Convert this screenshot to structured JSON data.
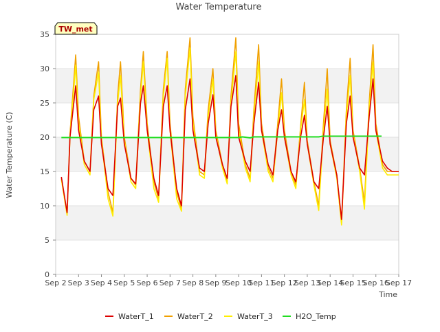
{
  "chart_data": {
    "type": "line",
    "title": "Water Temperature",
    "xlabel": "Time",
    "ylabel": "Water Temperature (C)",
    "xlim": [
      "2021-09-02",
      "2021-09-17"
    ],
    "ylim": [
      0,
      35
    ],
    "yticks": [
      0,
      5,
      10,
      15,
      20,
      25,
      30,
      35
    ],
    "xtick_labels": [
      "Sep 2",
      "Sep 3",
      "Sep 4",
      "Sep 5",
      "Sep 6",
      "Sep 7",
      "Sep 8",
      "Sep 9",
      "Sep 10",
      "Sep 11",
      "Sep 12",
      "Sep 13",
      "Sep 14",
      "Sep 15",
      "Sep 16",
      "Sep 17"
    ],
    "grid": "horizontal bands",
    "legend_position": "bottom",
    "annotation": "TW_met",
    "series": [
      {
        "name": "WaterT_1",
        "color": "#dd0000",
        "x": [
          "2021-09-02 06:00",
          "2021-09-02 12:00",
          "2021-09-02 15:00",
          "2021-09-02 21:00",
          "2021-09-03 00:00",
          "2021-09-03 06:00",
          "2021-09-03 12:00",
          "2021-09-03 16:00",
          "2021-09-03 21:00",
          "2021-09-04 00:00",
          "2021-09-04 07:00",
          "2021-09-04 12:00",
          "2021-09-04 17:00",
          "2021-09-04 20:00",
          "2021-09-05 00:00",
          "2021-09-05 07:00",
          "2021-09-05 12:00",
          "2021-09-05 17:00",
          "2021-09-05 20:00",
          "2021-09-06 00:00",
          "2021-09-06 07:00",
          "2021-09-06 12:00",
          "2021-09-06 17:00",
          "2021-09-06 21:00",
          "2021-09-07 00:00",
          "2021-09-07 07:00",
          "2021-09-07 12:00",
          "2021-09-07 16:00",
          "2021-09-07 21:00",
          "2021-09-08 00:00",
          "2021-09-08 07:00",
          "2021-09-08 12:00",
          "2021-09-08 16:00",
          "2021-09-08 21:00",
          "2021-09-09 00:00",
          "2021-09-09 07:00",
          "2021-09-09 12:00",
          "2021-09-09 16:00",
          "2021-09-09 21:00",
          "2021-09-10 00:00",
          "2021-09-10 07:00",
          "2021-09-10 12:00",
          "2021-09-10 16:00",
          "2021-09-10 21:00",
          "2021-09-11 00:00",
          "2021-09-11 07:00",
          "2021-09-11 12:00",
          "2021-09-11 17:00",
          "2021-09-11 21:00",
          "2021-09-12 00:00",
          "2021-09-12 07:00",
          "2021-09-12 12:00",
          "2021-09-12 17:00",
          "2021-09-12 21:00",
          "2021-09-13 00:00",
          "2021-09-13 07:00",
          "2021-09-13 12:00",
          "2021-09-13 17:00",
          "2021-09-13 21:00",
          "2021-09-14 00:00",
          "2021-09-14 07:00",
          "2021-09-14 12:00",
          "2021-09-14 17:00",
          "2021-09-14 21:00",
          "2021-09-15 00:00",
          "2021-09-15 07:00",
          "2021-09-15 12:00",
          "2021-09-15 17:00",
          "2021-09-15 21:00",
          "2021-09-16 00:00",
          "2021-09-16 07:00",
          "2021-09-16 12:00",
          "2021-09-16 17:00",
          "2021-09-16 21:00",
          "2021-09-17 00:00"
        ],
        "y": [
          14.2,
          9.0,
          20.0,
          27.5,
          21.0,
          16.5,
          15.0,
          24.0,
          26.0,
          19.0,
          12.5,
          11.5,
          24.5,
          25.7,
          19.0,
          14.0,
          13.2,
          25.0,
          27.5,
          21.0,
          14.0,
          11.5,
          24.5,
          27.5,
          21.0,
          12.5,
          10.0,
          24.0,
          28.5,
          21.0,
          15.5,
          15.0,
          22.0,
          26.2,
          20.0,
          16.0,
          14.0,
          24.5,
          29.0,
          20.0,
          16.5,
          15.0,
          22.0,
          28.0,
          21.0,
          16.0,
          14.5,
          21.0,
          24.0,
          20.0,
          15.0,
          13.5,
          20.0,
          23.2,
          19.0,
          13.5,
          12.5,
          20.0,
          24.5,
          19.0,
          14.5,
          8.0,
          22.0,
          26.0,
          20.0,
          15.5,
          14.5,
          23.0,
          28.5,
          21.0,
          16.5,
          15.5,
          15.0,
          15.0,
          15.0
        ]
      },
      {
        "name": "WaterT_2",
        "color": "#f0a000",
        "x": [
          "2021-09-02 06:00",
          "2021-09-02 12:00",
          "2021-09-02 15:00",
          "2021-09-02 21:00",
          "2021-09-03 00:00",
          "2021-09-03 06:00",
          "2021-09-03 12:00",
          "2021-09-03 16:00",
          "2021-09-03 21:00",
          "2021-09-04 00:00",
          "2021-09-04 07:00",
          "2021-09-04 12:00",
          "2021-09-04 17:00",
          "2021-09-04 20:00",
          "2021-09-05 00:00",
          "2021-09-05 07:00",
          "2021-09-05 12:00",
          "2021-09-05 17:00",
          "2021-09-05 20:00",
          "2021-09-06 00:00",
          "2021-09-06 07:00",
          "2021-09-06 12:00",
          "2021-09-06 17:00",
          "2021-09-06 21:00",
          "2021-09-07 00:00",
          "2021-09-07 07:00",
          "2021-09-07 12:00",
          "2021-09-07 16:00",
          "2021-09-07 21:00",
          "2021-09-08 00:00",
          "2021-09-08 07:00",
          "2021-09-08 12:00",
          "2021-09-08 16:00",
          "2021-09-08 21:00",
          "2021-09-09 00:00",
          "2021-09-09 07:00",
          "2021-09-09 12:00",
          "2021-09-09 16:00",
          "2021-09-09 21:00",
          "2021-09-10 00:00",
          "2021-09-10 07:00",
          "2021-09-10 12:00",
          "2021-09-10 16:00",
          "2021-09-10 21:00",
          "2021-09-11 00:00",
          "2021-09-11 07:00",
          "2021-09-11 12:00",
          "2021-09-11 17:00",
          "2021-09-11 21:00",
          "2021-09-12 00:00",
          "2021-09-12 07:00",
          "2021-09-12 12:00",
          "2021-09-12 17:00",
          "2021-09-12 21:00",
          "2021-09-13 00:00",
          "2021-09-13 07:00",
          "2021-09-13 12:00",
          "2021-09-13 17:00",
          "2021-09-13 21:00",
          "2021-09-14 00:00",
          "2021-09-14 07:00",
          "2021-09-14 12:00",
          "2021-09-14 17:00",
          "2021-09-14 21:00",
          "2021-09-15 00:00",
          "2021-09-15 07:00",
          "2021-09-15 12:00",
          "2021-09-15 17:00",
          "2021-09-15 21:00",
          "2021-09-16 00:00",
          "2021-09-16 07:00",
          "2021-09-16 12:00",
          "2021-09-16 17:00",
          "2021-09-16 21:00",
          "2021-09-17 00:00"
        ],
        "y": [
          14.0,
          8.8,
          20.5,
          32.0,
          23.0,
          16.5,
          15.0,
          26.0,
          31.0,
          20.0,
          12.0,
          9.0,
          26.0,
          31.0,
          20.0,
          14.0,
          13.0,
          27.0,
          32.5,
          22.0,
          13.5,
          11.0,
          27.0,
          32.5,
          22.0,
          12.0,
          9.5,
          27.0,
          34.5,
          23.0,
          15.0,
          14.5,
          24.0,
          30.0,
          21.0,
          16.0,
          13.5,
          26.0,
          34.5,
          22.0,
          16.0,
          14.0,
          24.0,
          33.5,
          22.0,
          15.5,
          14.0,
          22.0,
          28.5,
          21.0,
          15.0,
          13.0,
          21.5,
          28.0,
          19.5,
          13.5,
          10.0,
          22.0,
          30.0,
          19.5,
          14.5,
          7.5,
          24.0,
          31.5,
          21.0,
          15.5,
          10.5,
          25.0,
          33.5,
          22.0,
          16.0,
          15.0,
          15.0,
          15.0,
          15.0
        ]
      },
      {
        "name": "WaterT_3",
        "color": "#ffee00",
        "x": [
          "2021-09-02 06:00",
          "2021-09-02 12:00",
          "2021-09-02 15:00",
          "2021-09-02 21:00",
          "2021-09-03 00:00",
          "2021-09-03 06:00",
          "2021-09-03 12:00",
          "2021-09-03 16:00",
          "2021-09-03 21:00",
          "2021-09-04 00:00",
          "2021-09-04 07:00",
          "2021-09-04 12:00",
          "2021-09-04 17:00",
          "2021-09-04 20:00",
          "2021-09-05 00:00",
          "2021-09-05 07:00",
          "2021-09-05 12:00",
          "2021-09-05 17:00",
          "2021-09-05 20:00",
          "2021-09-06 00:00",
          "2021-09-06 07:00",
          "2021-09-06 12:00",
          "2021-09-06 17:00",
          "2021-09-06 21:00",
          "2021-09-07 00:00",
          "2021-09-07 07:00",
          "2021-09-07 12:00",
          "2021-09-07 16:00",
          "2021-09-07 21:00",
          "2021-09-08 00:00",
          "2021-09-08 07:00",
          "2021-09-08 12:00",
          "2021-09-08 16:00",
          "2021-09-08 21:00",
          "2021-09-09 00:00",
          "2021-09-09 07:00",
          "2021-09-09 12:00",
          "2021-09-09 16:00",
          "2021-09-09 21:00",
          "2021-09-10 00:00",
          "2021-09-10 07:00",
          "2021-09-10 12:00",
          "2021-09-10 16:00",
          "2021-09-10 21:00",
          "2021-09-11 00:00",
          "2021-09-11 07:00",
          "2021-09-11 12:00",
          "2021-09-11 17:00",
          "2021-09-11 21:00",
          "2021-09-12 00:00",
          "2021-09-12 07:00",
          "2021-09-12 12:00",
          "2021-09-12 17:00",
          "2021-09-12 21:00",
          "2021-09-13 00:00",
          "2021-09-13 07:00",
          "2021-09-13 12:00",
          "2021-09-13 17:00",
          "2021-09-13 21:00",
          "2021-09-14 00:00",
          "2021-09-14 07:00",
          "2021-09-14 12:00",
          "2021-09-14 17:00",
          "2021-09-14 21:00",
          "2021-09-15 00:00",
          "2021-09-15 07:00",
          "2021-09-15 12:00",
          "2021-09-15 17:00",
          "2021-09-15 21:00",
          "2021-09-16 00:00",
          "2021-09-16 07:00",
          "2021-09-16 12:00",
          "2021-09-16 17:00",
          "2021-09-16 21:00",
          "2021-09-17 00:00"
        ],
        "y": [
          13.8,
          8.6,
          20.0,
          30.5,
          22.0,
          16.0,
          14.5,
          25.5,
          29.5,
          19.5,
          11.0,
          8.5,
          25.0,
          29.0,
          19.5,
          13.5,
          12.5,
          26.0,
          31.0,
          21.0,
          12.5,
          10.5,
          26.0,
          31.5,
          21.0,
          11.0,
          9.2,
          26.0,
          33.0,
          22.0,
          14.5,
          14.0,
          23.0,
          28.5,
          20.5,
          15.5,
          13.2,
          25.0,
          32.5,
          21.0,
          15.5,
          13.5,
          23.0,
          31.0,
          21.0,
          15.0,
          13.5,
          21.0,
          26.5,
          20.0,
          14.5,
          12.5,
          21.0,
          25.5,
          19.0,
          13.0,
          9.3,
          21.0,
          27.0,
          19.0,
          14.0,
          7.2,
          23.0,
          29.0,
          20.5,
          15.0,
          9.5,
          24.0,
          31.0,
          21.0,
          15.5,
          14.5,
          14.5,
          14.5,
          14.5
        ]
      },
      {
        "name": "H2O_Temp",
        "color": "#22dd22",
        "x": [
          "2021-09-02 06:00",
          "2021-09-10 00:00",
          "2021-09-10 04:00",
          "2021-09-10 12:00",
          "2021-09-10 16:00",
          "2021-09-13 12:00",
          "2021-09-13 16:00",
          "2021-09-16 06:00"
        ],
        "y": [
          19.95,
          19.95,
          20.05,
          19.9,
          20.05,
          20.05,
          20.15,
          20.15
        ]
      }
    ]
  }
}
